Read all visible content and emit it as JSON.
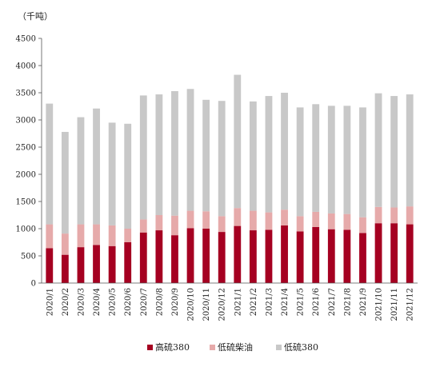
{
  "chart_data": {
    "type": "bar",
    "stacked": true,
    "unit_label": "（千吨）",
    "categories": [
      "2020/1",
      "2020/2",
      "2020/3",
      "2020/4",
      "2020/5",
      "2020/6",
      "2020/7",
      "2020/8",
      "2020/9",
      "2020/10",
      "2020/11",
      "2020/12",
      "2021/1",
      "2021/2",
      "2021/3",
      "2021/4",
      "2021/5",
      "2021/6",
      "2021/7",
      "2021/8",
      "2021/9",
      "2021/10",
      "2021/11",
      "2021/12"
    ],
    "ylim": [
      0,
      4500
    ],
    "yticks": [
      0,
      500,
      1000,
      1500,
      2000,
      2500,
      3000,
      3500,
      4000,
      4500
    ],
    "grid": false,
    "legend_position": "bottom",
    "series": [
      {
        "name": "高硫380",
        "color": "#a50021",
        "values": [
          640,
          520,
          660,
          700,
          680,
          750,
          930,
          970,
          880,
          1010,
          1000,
          940,
          1050,
          970,
          980,
          1060,
          950,
          1030,
          990,
          980,
          920,
          1100,
          1100,
          1080
        ]
      },
      {
        "name": "低硫柴油",
        "color": "#e6aaaa",
        "values": [
          440,
          390,
          420,
          380,
          380,
          250,
          240,
          280,
          360,
          320,
          320,
          290,
          330,
          360,
          320,
          290,
          280,
          280,
          290,
          290,
          290,
          300,
          290,
          330
        ]
      },
      {
        "name": "低硫380",
        "color": "#c8c8c8",
        "values": [
          2220,
          1870,
          1970,
          2130,
          1890,
          1930,
          2280,
          2220,
          2290,
          2240,
          2050,
          2120,
          2450,
          2010,
          2140,
          2150,
          2000,
          1980,
          1980,
          1990,
          2020,
          2090,
          2050,
          2060
        ]
      }
    ]
  }
}
